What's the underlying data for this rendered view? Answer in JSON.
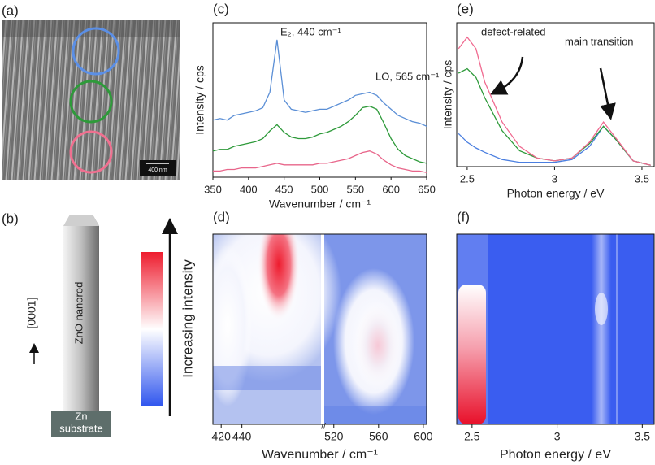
{
  "panel_labels": [
    "(a)",
    "(b)",
    "(c)",
    "(d)",
    "(e)",
    "(f)"
  ],
  "sem_image": {
    "scale_bar": "400 nm"
  },
  "schematic": {
    "direction": "[0001]",
    "rod": "ZnO nanorod",
    "substrate": [
      "Zn",
      "substrate"
    ],
    "colorbar_label": "Increasing intensity"
  },
  "chart_data": [
    {
      "type": "line",
      "xlabel": "Wavenumber / cm⁻¹",
      "ylabel": "Intensity / cps",
      "annotations": [
        "E₂, 440 cm⁻¹",
        "LO, 565 cm⁻¹"
      ],
      "xlim": [
        350,
        650
      ],
      "xticks": [
        350,
        400,
        450,
        500,
        550,
        600,
        650
      ],
      "ylim": [
        0,
        100
      ],
      "x": [
        350,
        360,
        370,
        380,
        390,
        400,
        410,
        420,
        430,
        440,
        450,
        460,
        470,
        480,
        490,
        500,
        510,
        520,
        530,
        540,
        550,
        560,
        570,
        580,
        590,
        600,
        610,
        620,
        630,
        640,
        650
      ],
      "series": [
        {
          "color": "#5b8fd6",
          "values": [
            37,
            38,
            37,
            40,
            41,
            42,
            43,
            45,
            55,
            89,
            50,
            44,
            43,
            42,
            43,
            44,
            44,
            46,
            48,
            50,
            53,
            54,
            55,
            53,
            48,
            44,
            40,
            38,
            36,
            35,
            33
          ]
        },
        {
          "color": "#2e9a3a",
          "values": [
            17,
            18,
            18,
            20,
            21,
            22,
            23,
            25,
            30,
            34,
            29,
            26,
            25,
            25,
            26,
            28,
            29,
            31,
            33,
            36,
            40,
            45,
            46,
            44,
            35,
            25,
            18,
            14,
            12,
            10,
            9
          ]
        },
        {
          "color": "#e8658a",
          "values": [
            4,
            4,
            5,
            5,
            6,
            6,
            6,
            7,
            8,
            9,
            8,
            8,
            8,
            8,
            8,
            9,
            9,
            10,
            11,
            12,
            14,
            16,
            17,
            15,
            11,
            8,
            6,
            5,
            4,
            4,
            3
          ]
        }
      ]
    },
    {
      "type": "line",
      "xlabel": "Photon energy / eV",
      "ylabel": "Intensity / cps",
      "annotations": [
        "defect-related",
        "main transition"
      ],
      "xlim": [
        2.44,
        3.57
      ],
      "xticks": [
        2.5,
        3.0,
        3.5
      ],
      "ylim": [
        0,
        100
      ],
      "x": [
        2.45,
        2.5,
        2.55,
        2.6,
        2.7,
        2.8,
        2.9,
        3.0,
        3.1,
        3.2,
        3.28,
        3.35,
        3.45,
        3.55
      ],
      "series": [
        {
          "color": "#4b7fe0",
          "values": [
            23,
            17,
            13,
            10,
            5,
            3,
            3,
            3,
            5,
            14,
            28,
            19,
            4,
            1
          ]
        },
        {
          "color": "#2e9a3a",
          "values": [
            65,
            68,
            62,
            48,
            25,
            11,
            6,
            4,
            6,
            16,
            28,
            19,
            4,
            1
          ]
        },
        {
          "color": "#f06a90",
          "values": [
            82,
            90,
            82,
            59,
            31,
            14,
            6,
            4,
            6,
            17,
            31,
            20,
            4,
            1
          ]
        }
      ]
    },
    {
      "type": "heatmap",
      "xlabel": "Wavenumber / cm⁻¹",
      "x_break": true,
      "xlim": [
        [
          412,
          518
        ],
        [
          510,
          603
        ]
      ],
      "xticks": [
        420,
        440,
        520,
        560,
        600
      ]
    },
    {
      "type": "heatmap",
      "xlabel": "Photon energy / eV",
      "xlim": [
        2.41,
        3.57
      ],
      "xticks": [
        2.5,
        3.0,
        3.5
      ]
    }
  ]
}
